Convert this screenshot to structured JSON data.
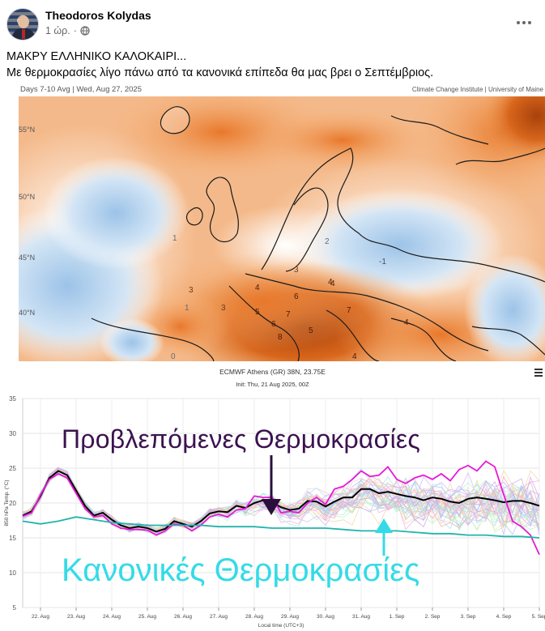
{
  "post": {
    "author": "Theodoros Kolydas",
    "time": "1 ώρ.",
    "separator": "·",
    "line1": "ΜΑΚΡΥ ΕΛΛΗΝΙΚΟ ΚΑΛΟΚΑΙΡΙ...",
    "line2": "Με θερμοκρασίες λίγο πάνω από τα κανονικά επίπεδα θα μας βρει ο Σεπτέμβριος."
  },
  "icons": {
    "more": "more-dots-icon",
    "privacy": "globe-icon",
    "menu": "hamburger-icon"
  },
  "map": {
    "header_left": "Days 7-10 Avg | Wed, Aug 27, 2025",
    "header_right": "Climate Change Institute | University of Maine",
    "lat_labels": [
      "55°N",
      "50°N",
      "45°N",
      "40°N"
    ],
    "anomaly_numbers": [
      "4",
      "5",
      "6",
      "7",
      "8",
      "6",
      "5",
      "4",
      "7",
      "4",
      "3",
      "1",
      "-1",
      "1",
      "3",
      "2",
      "4",
      "3",
      "0",
      "4"
    ]
  },
  "chart": {
    "title": "ECMWF Athens (GR) 38N, 23.75E",
    "init": "Init: Thu, 21 Aug 2025, 00Z",
    "ylabel": "850 hPa Temp. (°C)",
    "xlabel": "Local time (UTC+3)",
    "overlay_forecast": "Προβλεπόμενες Θερμοκρασίες",
    "overlay_normal": "Κανονικές  Θερμοκρασίες",
    "colors": {
      "mean": "#000000",
      "control": "#e619d6",
      "normal": "#22b3ac",
      "ensemble": "#a8b5e6",
      "forecast_text": "#3b1250",
      "normal_text": "#34dbe6"
    }
  },
  "chart_data": {
    "type": "line",
    "title": "ECMWF Athens (GR) 38N, 23.75E",
    "xlabel": "Local time (UTC+3)",
    "ylabel": "850 hPa Temp. (°C)",
    "ylim": [
      5,
      35
    ],
    "yticks": [
      5,
      10,
      15,
      20,
      25,
      30,
      35
    ],
    "categories": [
      "22. Aug",
      "23. Aug",
      "24. Aug",
      "25. Aug",
      "26. Aug",
      "27. Aug",
      "28. Aug",
      "29. Aug",
      "30. Aug",
      "31. Aug",
      "1. Sep",
      "2. Sep",
      "3. Sep",
      "4. Sep",
      "5. Sep"
    ],
    "x_start": 21.5,
    "x_end": 36.0,
    "series": [
      {
        "name": "",
        "x": [
          21.5,
          21.75,
          22.0,
          22.25,
          22.5,
          22.75,
          23.0,
          23.25,
          23.5,
          23.75,
          24.0,
          24.25,
          24.5,
          24.75,
          25.0,
          25.25,
          25.5,
          25.75,
          26.0,
          26.25,
          26.5,
          26.75,
          27.0,
          27.25,
          27.5,
          27.75,
          28.0,
          28.25,
          28.5,
          28.75,
          29.0,
          29.25,
          29.5,
          29.75,
          30.0,
          30.25,
          30.5,
          30.75,
          31.0,
          31.25,
          31.5,
          31.75,
          32.0,
          32.25,
          32.5,
          32.75,
          33.0,
          33.25,
          33.5,
          33.75,
          34.0,
          34.25,
          34.5,
          34.75,
          35.0,
          35.25,
          35.5,
          35.75,
          36.0
        ],
        "values": [
          18.2,
          18.8,
          21.0,
          23.6,
          24.6,
          24.0,
          21.8,
          19.6,
          18.2,
          18.6,
          17.6,
          16.8,
          16.4,
          16.6,
          16.4,
          15.9,
          16.3,
          17.4,
          17.0,
          16.6,
          17.4,
          18.5,
          18.8,
          18.7,
          19.6,
          19.3,
          20.0,
          20.4,
          20.1,
          19.4,
          19.0,
          19.2,
          20.3,
          20.2,
          19.5,
          20.2,
          20.8,
          20.8,
          22.0,
          22.0,
          21.4,
          21.6,
          21.3,
          21.0,
          20.8,
          20.4,
          20.8,
          20.6,
          20.2,
          20.0,
          20.6,
          20.8,
          20.6,
          20.4,
          20.1,
          20.3,
          20.3,
          20.0,
          19.6
        ],
        "color": "#000000"
      },
      {
        "name": "",
        "x": [
          21.5,
          21.75,
          22.0,
          22.25,
          22.5,
          22.75,
          23.0,
          23.25,
          23.5,
          23.75,
          24.0,
          24.25,
          24.5,
          24.75,
          25.0,
          25.25,
          25.5,
          25.75,
          26.0,
          26.25,
          26.5,
          26.75,
          27.0,
          27.25,
          27.5,
          27.75,
          28.0,
          28.25,
          28.5,
          28.75,
          29.0,
          29.25,
          29.5,
          29.75,
          30.0,
          30.25,
          30.5,
          30.75,
          31.0,
          31.25,
          31.5,
          31.75,
          32.0,
          32.25,
          32.5,
          32.75,
          33.0,
          33.25,
          33.5,
          33.75,
          34.0,
          34.25,
          34.5,
          34.75,
          35.0,
          35.25,
          35.5,
          35.75,
          36.0
        ],
        "values": [
          18.1,
          18.6,
          21.2,
          23.4,
          24.2,
          23.6,
          21.4,
          19.2,
          18.0,
          18.2,
          17.0,
          16.4,
          16.2,
          16.2,
          16.1,
          15.4,
          16.0,
          17.0,
          16.8,
          16.0,
          16.8,
          18.0,
          18.4,
          18.0,
          19.0,
          19.2,
          21.0,
          20.8,
          20.8,
          18.6,
          18.8,
          18.6,
          20.0,
          20.8,
          19.8,
          22.0,
          22.4,
          23.4,
          24.6,
          23.8,
          24.0,
          25.2,
          23.4,
          22.8,
          23.6,
          24.0,
          23.4,
          24.2,
          23.2,
          24.8,
          25.4,
          24.6,
          26.0,
          25.2,
          21.2,
          17.4,
          16.6,
          15.4,
          12.6
        ],
        "color": "#e619d6"
      },
      {
        "name": "",
        "x": [
          21.5,
          22.0,
          22.5,
          23.0,
          23.5,
          24.0,
          24.5,
          25.0,
          25.5,
          26.0,
          26.5,
          27.0,
          27.5,
          28.0,
          28.5,
          29.0,
          29.5,
          30.0,
          30.5,
          31.0,
          31.5,
          32.0,
          32.5,
          33.0,
          33.5,
          34.0,
          34.5,
          35.0,
          35.5,
          36.0
        ],
        "values": [
          17.4,
          17.0,
          17.4,
          18.0,
          17.6,
          17.2,
          17.0,
          16.8,
          16.8,
          16.8,
          16.8,
          16.6,
          16.6,
          16.6,
          16.4,
          16.4,
          16.4,
          16.4,
          16.2,
          16.0,
          16.0,
          16.0,
          15.8,
          15.6,
          15.6,
          15.4,
          15.4,
          15.2,
          15.2,
          15.0
        ],
        "color": "#22b3ac"
      }
    ],
    "grid": true,
    "legend": "none"
  }
}
